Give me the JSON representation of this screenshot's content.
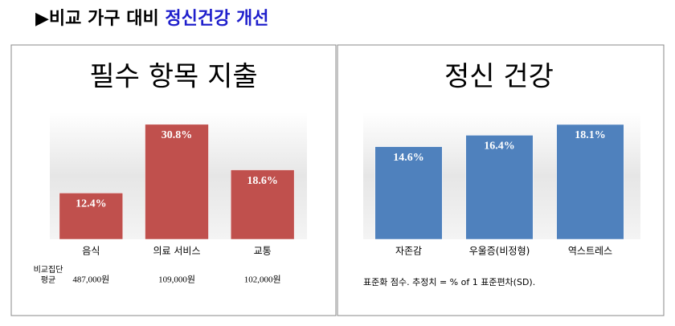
{
  "header": {
    "title": "▶비교 가구 대비",
    "title_highlight": "정신건강 개선"
  },
  "chart_data": [
    {
      "type": "bar",
      "title": "필수 항목 지출",
      "categories": [
        "음식",
        "의료 서비스",
        "교통"
      ],
      "values": [
        12.4,
        30.8,
        18.6
      ],
      "value_labels": [
        "12.4%",
        "30.8%",
        "18.6%"
      ],
      "color": "#c0504d",
      "ylim": [
        0,
        34
      ],
      "row_label": [
        "비교집단",
        "평균"
      ],
      "row_values": [
        "487,000원",
        "109,000원",
        "102,000원"
      ]
    },
    {
      "type": "bar",
      "title": "정신 건강",
      "categories": [
        "자존감",
        "우울증(비정형)",
        "역스트레스"
      ],
      "values": [
        14.6,
        16.4,
        18.1
      ],
      "value_labels": [
        "14.6%",
        "16.4%",
        "18.1%"
      ],
      "color": "#4f81bd",
      "ylim": [
        0,
        20
      ],
      "note": "표준화 점수. 추정치 = % of 1 표준편차(SD)."
    }
  ]
}
